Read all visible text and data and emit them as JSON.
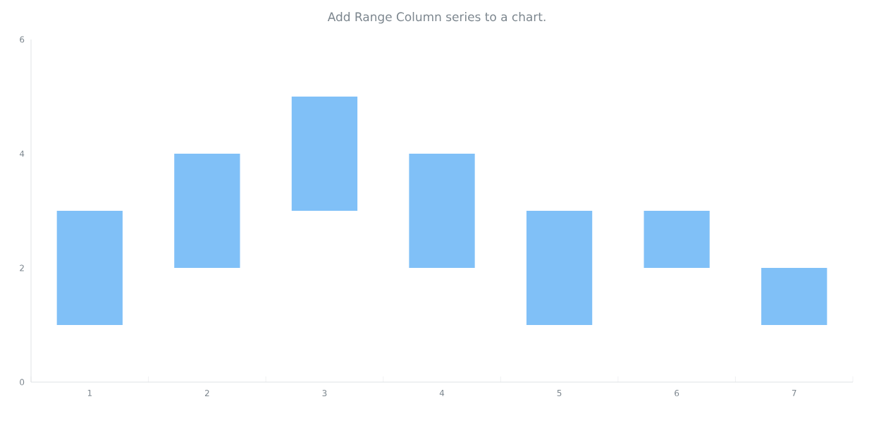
{
  "chart_data": {
    "type": "bar",
    "title": "Add Range Column series to a chart.",
    "categories": [
      "1",
      "2",
      "3",
      "4",
      "5",
      "6",
      "7"
    ],
    "base": [
      1,
      2,
      3,
      2,
      1,
      2,
      1
    ],
    "values": [
      2,
      2,
      2,
      2,
      2,
      1,
      1
    ],
    "color": "#80c0f7",
    "ylim": [
      0,
      6
    ],
    "yticks": [
      0,
      2,
      4,
      6
    ],
    "grid": false
  }
}
